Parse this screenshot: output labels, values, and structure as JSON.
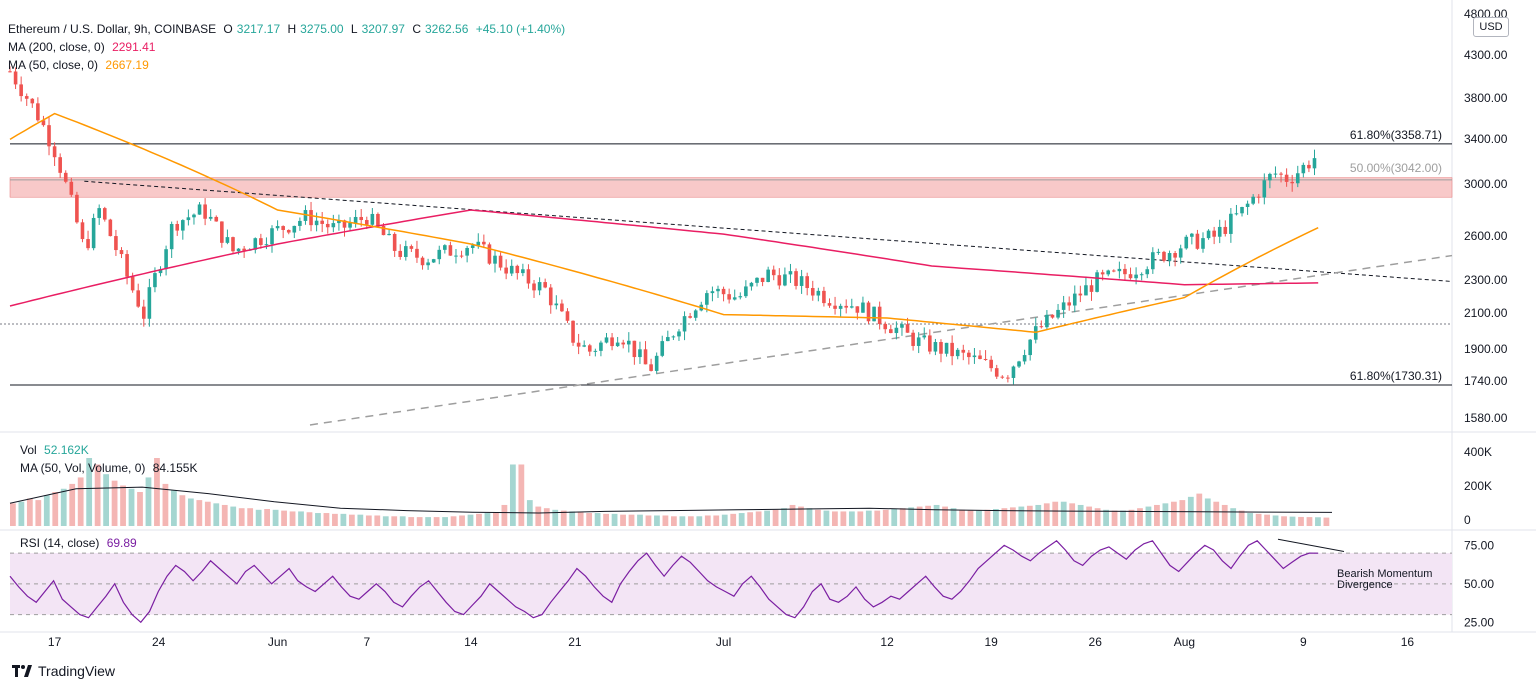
{
  "header": {
    "symbol": "Ethereum / U.S. Dollar, 9h, COINBASE",
    "ohlc": {
      "o_label": "O",
      "o": "3217.17",
      "h_label": "H",
      "h": "3275.00",
      "l_label": "L",
      "l": "3207.97",
      "c_label": "C",
      "c": "3262.56",
      "change": "+45.10 (+1.40%)"
    },
    "ma200": {
      "label": "MA (200, close, 0)",
      "value": "2291.41",
      "color": "#e91e63"
    },
    "ma50": {
      "label": "MA (50, close, 0)",
      "value": "2667.19",
      "color": "#ff9800"
    },
    "currency": "USD"
  },
  "volume_legend": {
    "label": "Vol",
    "value": "52.162K",
    "ma_label": "MA (50, Vol, Volume, 0)",
    "ma_value": "84.155K"
  },
  "rsi_legend": {
    "label": "RSI (14, close)",
    "value": "69.89",
    "color": "#7b1fa2"
  },
  "annotations": {
    "fib_618_upper": "61.80%(3358.71)",
    "fib_500": "50.00%(3042.00)",
    "fib_618_lower": "61.80%(1730.31)",
    "divergence": "Bearish Momentum Divergence"
  },
  "footer": {
    "brand": "TradingView"
  },
  "chart_data": [
    {
      "type": "candlestick",
      "title": "Ethereum / U.S. Dollar, 9h, COINBASE",
      "y_ticks": [
        "4800.00",
        "4300.00",
        "3800.00",
        "3400.00",
        "3000.00",
        "2600.00",
        "2300.00",
        "2100.00",
        "1900.00",
        "1740.00",
        "1580.00"
      ],
      "x_ticks": [
        "17",
        "24",
        "Jun",
        "7",
        "14",
        "21",
        "Jul",
        "12",
        "19",
        "26",
        "Aug",
        "9",
        "16"
      ],
      "scale": "log",
      "price_path": [
        [
          "May 14",
          4100
        ],
        [
          "May 16",
          3600
        ],
        [
          "May 17",
          3300
        ],
        [
          "May 19",
          2500
        ],
        [
          "May 20",
          2800
        ],
        [
          "May 22",
          2300
        ],
        [
          "May 23",
          2100
        ],
        [
          "May 25",
          2700
        ],
        [
          "May 27",
          2800
        ],
        [
          "May 29",
          2500
        ],
        [
          "Jun 1",
          2650
        ],
        [
          "Jun 3",
          2750
        ],
        [
          "Jun 5",
          2650
        ],
        [
          "Jun 7",
          2750
        ],
        [
          "Jun 9",
          2500
        ],
        [
          "Jun 11",
          2450
        ],
        [
          "Jun 14",
          2550
        ],
        [
          "Jun 17",
          2350
        ],
        [
          "Jun 19",
          2250
        ],
        [
          "Jun 21",
          1950
        ],
        [
          "Jun 22",
          1900
        ],
        [
          "Jun 24",
          2000
        ],
        [
          "Jun 26",
          1800
        ],
        [
          "Jun 28",
          2050
        ],
        [
          "Jun 30",
          2250
        ],
        [
          "Jul 2",
          2200
        ],
        [
          "Jul 4",
          2350
        ],
        [
          "Jul 6",
          2300
        ],
        [
          "Jul 8",
          2200
        ],
        [
          "Jul 10",
          2150
        ],
        [
          "Jul 12",
          2050
        ],
        [
          "Jul 14",
          1950
        ],
        [
          "Jul 16",
          1900
        ],
        [
          "Jul 18",
          1850
        ],
        [
          "Jul 20",
          1780
        ],
        [
          "Jul 22",
          2000
        ],
        [
          "Jul 24",
          2150
        ],
        [
          "Jul 26",
          2300
        ],
        [
          "Jul 28",
          2350
        ],
        [
          "Jul 30",
          2450
        ],
        [
          "Aug 1",
          2550
        ],
        [
          "Aug 3",
          2600
        ],
        [
          "Aug 5",
          2800
        ],
        [
          "Aug 7",
          3100
        ],
        [
          "Aug 8",
          3050
        ],
        [
          "Aug 9",
          3150
        ],
        [
          "Aug 10",
          3262
        ]
      ],
      "ma200": [
        [
          "May 14",
          2150
        ],
        [
          "Jun 1",
          2550
        ],
        [
          "Jun 14",
          2800
        ],
        [
          "Jul 1",
          2620
        ],
        [
          "Jul 15",
          2400
        ],
        [
          "Aug 1",
          2280
        ],
        [
          "Aug 10",
          2291
        ]
      ],
      "ma50": [
        [
          "May 14",
          3400
        ],
        [
          "May 17",
          3650
        ],
        [
          "Jun 1",
          2800
        ],
        [
          "Jun 14",
          2550
        ],
        [
          "Jul 1",
          2100
        ],
        [
          "Jul 12",
          2080
        ],
        [
          "Jul 22",
          2000
        ],
        [
          "Aug 1",
          2200
        ],
        [
          "Aug 10",
          2667
        ]
      ],
      "levels": [
        {
          "label": "61.80%(3358.71)",
          "value": 3358.71
        },
        {
          "label": "50.00%(3042.00)",
          "value": 3042.0
        },
        {
          "label": "61.80%(1730.31)",
          "value": 1730.31
        }
      ],
      "resistance_zone": [
        2900,
        3060
      ],
      "series": [
        {
          "name": "MA (200, close, 0)",
          "last": 2291.41
        },
        {
          "name": "MA (50, close, 0)",
          "last": 2667.19
        }
      ]
    },
    {
      "type": "bar",
      "title": "Vol",
      "y_ticks": [
        "400K",
        "200K",
        "0"
      ],
      "ylim": [
        0,
        420
      ],
      "values": [
        140,
        150,
        170,
        160,
        190,
        210,
        230,
        260,
        300,
        420,
        380,
        320,
        280,
        250,
        230,
        210,
        300,
        420,
        260,
        220,
        190,
        170,
        160,
        150,
        140,
        130,
        120,
        110,
        110,
        100,
        105,
        100,
        95,
        90,
        90,
        85,
        80,
        80,
        75,
        75,
        70,
        70,
        65,
        65,
        60,
        60,
        60,
        55,
        55,
        55,
        55,
        55,
        60,
        65,
        70,
        75,
        80,
        85,
        130,
        380,
        380,
        160,
        120,
        110,
        100,
        95,
        90,
        85,
        80,
        80,
        75,
        75,
        70,
        70,
        70,
        65,
        65,
        65,
        60,
        60,
        60,
        60,
        65,
        65,
        70,
        75,
        80,
        85,
        90,
        95,
        100,
        110,
        130,
        120,
        110,
        100,
        95,
        90,
        90,
        90,
        90,
        95,
        95,
        100,
        105,
        110,
        115,
        120,
        125,
        130,
        120,
        110,
        100,
        95,
        95,
        100,
        105,
        110,
        115,
        120,
        125,
        130,
        140,
        150,
        150,
        140,
        130,
        120,
        110,
        100,
        95,
        95,
        100,
        110,
        120,
        130,
        140,
        150,
        160,
        180,
        200,
        170,
        150,
        130,
        110,
        95,
        80,
        75,
        70,
        65,
        60,
        58,
        56,
        55,
        54,
        52
      ],
      "ma_values": [
        140,
        230,
        240,
        200,
        150,
        110,
        95,
        85,
        80,
        90,
        95,
        100,
        105,
        110,
        100,
        95,
        92,
        90,
        88,
        86,
        84
      ]
    },
    {
      "type": "line",
      "title": "RSI (14, close)",
      "y_ticks": [
        "75.00",
        "50.00",
        "25.00"
      ],
      "ylim": [
        20,
        85
      ],
      "band": [
        30,
        70
      ],
      "values": [
        55,
        48,
        42,
        38,
        45,
        52,
        40,
        35,
        30,
        28,
        35,
        42,
        50,
        38,
        30,
        25,
        32,
        45,
        55,
        62,
        58,
        52,
        58,
        65,
        60,
        55,
        50,
        58,
        62,
        56,
        50,
        55,
        60,
        52,
        48,
        45,
        50,
        55,
        48,
        42,
        40,
        45,
        50,
        45,
        38,
        35,
        42,
        48,
        52,
        45,
        38,
        32,
        30,
        36,
        42,
        50,
        45,
        40,
        35,
        32,
        28,
        30,
        38,
        45,
        52,
        60,
        55,
        48,
        42,
        38,
        50,
        58,
        65,
        70,
        62,
        55,
        62,
        68,
        64,
        58,
        52,
        48,
        45,
        42,
        50,
        55,
        48,
        40,
        35,
        30,
        28,
        35,
        45,
        50,
        40,
        38,
        42,
        48,
        40,
        35,
        38,
        42,
        40,
        45,
        50,
        55,
        48,
        42,
        40,
        45,
        52,
        60,
        65,
        70,
        75,
        72,
        68,
        65,
        70,
        74,
        78,
        72,
        65,
        62,
        68,
        72,
        74,
        70,
        66,
        72,
        76,
        78,
        70,
        62,
        58,
        64,
        70,
        75,
        72,
        65,
        60,
        68,
        75,
        78,
        72,
        66,
        60,
        64,
        68,
        70,
        69.89
      ]
    }
  ]
}
